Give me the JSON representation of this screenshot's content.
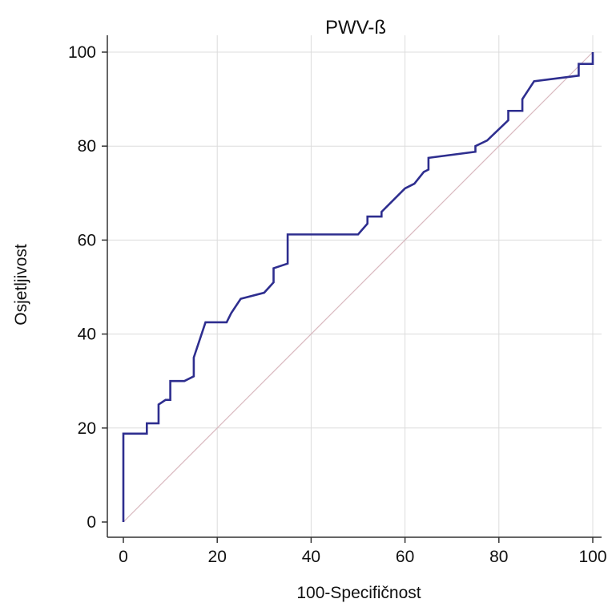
{
  "chart_data": {
    "type": "line",
    "title": "PWV-ß",
    "xlabel": "100-Specifičnost",
    "ylabel": "Osjetljivost",
    "xlim": [
      0,
      100
    ],
    "ylim": [
      0,
      100
    ],
    "x_ticks": [
      0,
      20,
      40,
      60,
      80,
      100
    ],
    "y_ticks": [
      0,
      20,
      40,
      60,
      80,
      100
    ],
    "x_tick_labels": [
      "0",
      "20",
      "40",
      "60",
      "80",
      "100"
    ],
    "y_tick_labels": [
      "0",
      "20",
      "40",
      "60",
      "80",
      "100"
    ],
    "grid": true,
    "colors": {
      "roc": "#2e2e8f",
      "reference": "#d9b8bf",
      "grid": "#dcdcdc",
      "axis": "#333333"
    },
    "series": [
      {
        "points": [
          [
            0,
            0
          ],
          [
            0,
            18.8
          ],
          [
            5,
            18.8
          ],
          [
            5,
            21
          ],
          [
            7.5,
            21
          ],
          [
            7.5,
            25
          ],
          [
            9,
            26
          ],
          [
            10,
            26
          ],
          [
            10,
            30
          ],
          [
            13,
            30
          ],
          [
            15,
            31
          ],
          [
            15,
            35
          ],
          [
            17.5,
            42.5
          ],
          [
            22,
            42.5
          ],
          [
            23,
            44.5
          ],
          [
            25,
            47.5
          ],
          [
            30,
            48.8
          ],
          [
            32,
            51
          ],
          [
            32,
            54
          ],
          [
            35,
            55
          ],
          [
            35,
            61.2
          ],
          [
            50,
            61.2
          ],
          [
            52,
            63.5
          ],
          [
            52,
            65
          ],
          [
            55,
            65
          ],
          [
            55,
            66
          ],
          [
            60,
            71
          ],
          [
            62,
            72
          ],
          [
            64,
            74.5
          ],
          [
            65,
            75
          ],
          [
            65,
            77.5
          ],
          [
            75,
            78.8
          ],
          [
            75,
            80
          ],
          [
            77.5,
            81.2
          ],
          [
            82,
            85.5
          ],
          [
            82,
            87.5
          ],
          [
            85,
            87.5
          ],
          [
            85,
            90
          ],
          [
            87.5,
            93.8
          ],
          [
            97,
            95
          ],
          [
            97,
            97.5
          ],
          [
            100,
            97.5
          ],
          [
            100,
            100
          ]
        ]
      },
      {
        "points": [
          [
            0,
            0
          ],
          [
            100,
            100
          ]
        ]
      }
    ]
  }
}
